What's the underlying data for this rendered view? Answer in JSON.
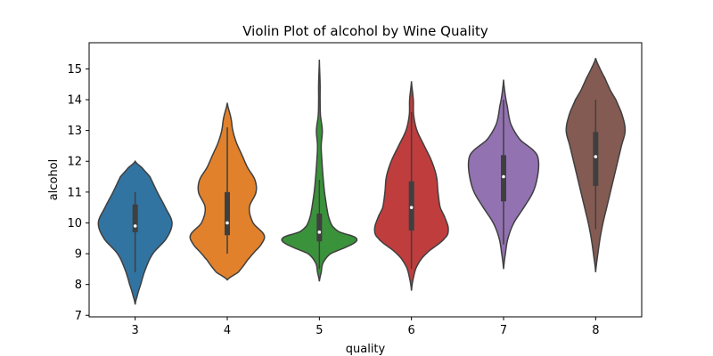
{
  "chart_data": {
    "type": "violin",
    "title": "Violin Plot of alcohol by Wine Quality",
    "xlabel": "quality",
    "ylabel": "alcohol",
    "ylim": [
      6.95,
      15.85
    ],
    "yticks": [
      7,
      8,
      9,
      10,
      11,
      12,
      13,
      14,
      15
    ],
    "categories": [
      "3",
      "4",
      "5",
      "6",
      "7",
      "8"
    ],
    "colors": [
      "#3274a1",
      "#e1812c",
      "#3a923a",
      "#c03d3e",
      "#9372b2",
      "#845b53"
    ],
    "series": [
      {
        "category": "3",
        "min": 8.4,
        "q1": 9.7,
        "median": 9.9,
        "q3": 10.6,
        "max": 11.0,
        "kde_min": 7.35,
        "kde_max": 12.0,
        "density": [
          [
            7.35,
            0.0
          ],
          [
            7.6,
            0.05
          ],
          [
            8.0,
            0.15
          ],
          [
            8.5,
            0.28
          ],
          [
            9.0,
            0.48
          ],
          [
            9.5,
            0.85
          ],
          [
            10.0,
            1.0
          ],
          [
            10.5,
            0.82
          ],
          [
            11.0,
            0.6
          ],
          [
            11.5,
            0.4
          ],
          [
            11.8,
            0.18
          ],
          [
            12.0,
            0.0
          ]
        ]
      },
      {
        "category": "4",
        "min": 9.0,
        "q1": 9.6,
        "median": 10.0,
        "q3": 11.0,
        "max": 13.1,
        "kde_min": 8.15,
        "kde_max": 13.9,
        "density": [
          [
            8.15,
            0.0
          ],
          [
            8.4,
            0.3
          ],
          [
            8.8,
            0.55
          ],
          [
            9.0,
            0.7
          ],
          [
            9.3,
            0.92
          ],
          [
            9.6,
            1.0
          ],
          [
            10.0,
            0.7
          ],
          [
            10.5,
            0.6
          ],
          [
            11.0,
            0.78
          ],
          [
            11.4,
            0.75
          ],
          [
            11.8,
            0.55
          ],
          [
            12.2,
            0.4
          ],
          [
            12.6,
            0.25
          ],
          [
            13.0,
            0.15
          ],
          [
            13.4,
            0.1
          ],
          [
            13.9,
            0.0
          ]
        ]
      },
      {
        "category": "5",
        "min": 8.5,
        "q1": 9.4,
        "median": 9.7,
        "q3": 10.3,
        "max": 11.4,
        "kde_min": 8.1,
        "kde_max": 15.3,
        "density": [
          [
            8.1,
            0.0
          ],
          [
            8.4,
            0.05
          ],
          [
            8.7,
            0.1
          ],
          [
            9.0,
            0.3
          ],
          [
            9.2,
            0.7
          ],
          [
            9.4,
            1.0
          ],
          [
            9.55,
            0.95
          ],
          [
            9.7,
            0.55
          ],
          [
            9.9,
            0.35
          ],
          [
            10.2,
            0.25
          ],
          [
            10.5,
            0.2
          ],
          [
            11.0,
            0.14
          ],
          [
            11.5,
            0.1
          ],
          [
            12.0,
            0.07
          ],
          [
            12.5,
            0.05
          ],
          [
            13.0,
            0.08
          ],
          [
            13.5,
            0.03
          ],
          [
            14.0,
            0.02
          ],
          [
            14.5,
            0.02
          ],
          [
            15.3,
            0.0
          ]
        ]
      },
      {
        "category": "6",
        "min": 8.5,
        "q1": 9.75,
        "median": 10.5,
        "q3": 11.35,
        "max": 13.6,
        "kde_min": 7.8,
        "kde_max": 14.6,
        "density": [
          [
            7.8,
            0.0
          ],
          [
            8.2,
            0.05
          ],
          [
            8.6,
            0.15
          ],
          [
            9.0,
            0.4
          ],
          [
            9.5,
            0.9
          ],
          [
            9.8,
            1.0
          ],
          [
            10.2,
            0.9
          ],
          [
            10.5,
            0.78
          ],
          [
            11.0,
            0.72
          ],
          [
            11.5,
            0.68
          ],
          [
            12.0,
            0.55
          ],
          [
            12.5,
            0.35
          ],
          [
            13.0,
            0.15
          ],
          [
            13.5,
            0.06
          ],
          [
            14.0,
            0.05
          ],
          [
            14.6,
            0.0
          ]
        ]
      },
      {
        "category": "7",
        "min": 9.3,
        "q1": 10.7,
        "median": 11.5,
        "q3": 12.2,
        "max": 14.0,
        "kde_min": 8.5,
        "kde_max": 14.65,
        "density": [
          [
            8.5,
            0.0
          ],
          [
            9.0,
            0.05
          ],
          [
            9.5,
            0.12
          ],
          [
            10.0,
            0.28
          ],
          [
            10.5,
            0.55
          ],
          [
            11.0,
            0.8
          ],
          [
            11.5,
            0.92
          ],
          [
            12.0,
            0.95
          ],
          [
            12.3,
            0.85
          ],
          [
            12.7,
            0.45
          ],
          [
            13.2,
            0.2
          ],
          [
            13.8,
            0.1
          ],
          [
            14.2,
            0.04
          ],
          [
            14.65,
            0.0
          ]
        ]
      },
      {
        "category": "8",
        "min": 9.8,
        "q1": 11.2,
        "median": 12.15,
        "q3": 12.95,
        "max": 14.0,
        "kde_min": 8.4,
        "kde_max": 15.35,
        "density": [
          [
            8.4,
            0.0
          ],
          [
            9.0,
            0.06
          ],
          [
            9.5,
            0.12
          ],
          [
            10.0,
            0.2
          ],
          [
            10.5,
            0.3
          ],
          [
            11.0,
            0.4
          ],
          [
            11.5,
            0.5
          ],
          [
            12.0,
            0.6
          ],
          [
            12.5,
            0.7
          ],
          [
            13.0,
            0.8
          ],
          [
            13.5,
            0.72
          ],
          [
            14.0,
            0.55
          ],
          [
            14.3,
            0.4
          ],
          [
            14.7,
            0.25
          ],
          [
            15.0,
            0.12
          ],
          [
            15.35,
            0.0
          ]
        ]
      }
    ]
  }
}
